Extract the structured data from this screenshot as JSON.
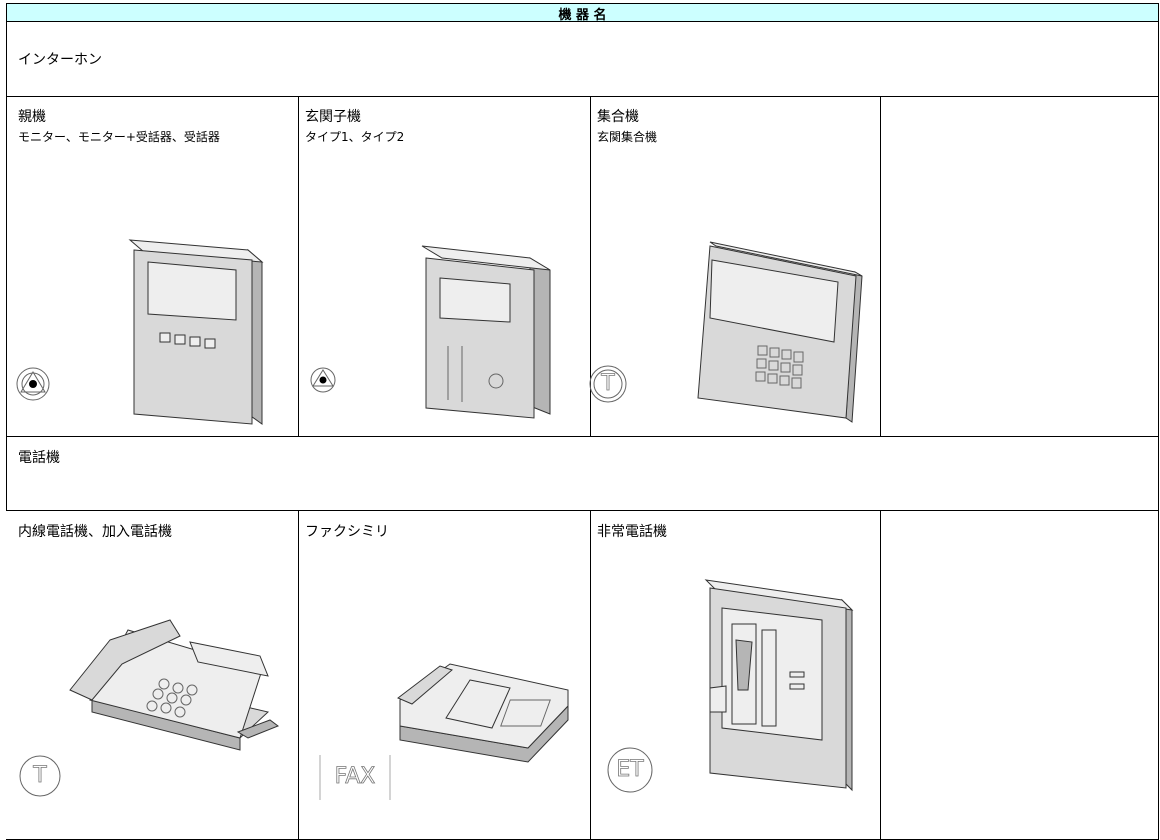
{
  "header": {
    "title": "機 器 名"
  },
  "sections": [
    {
      "title": "インターホン",
      "cells": [
        {
          "title": "親機",
          "subtitle": "モニター、モニター+受話器、受話器"
        },
        {
          "title": "玄関子機",
          "subtitle": "タイプ1、タイプ2"
        },
        {
          "title": "集合機",
          "subtitle": "玄関集合機",
          "symbol": "T"
        }
      ]
    },
    {
      "title": "電話機",
      "cells": [
        {
          "title": "内線電話機、加入電話機",
          "symbol": "T"
        },
        {
          "title": "ファクシミリ",
          "symbol": "FAX"
        },
        {
          "title": "非常電話機",
          "symbol": "ET"
        }
      ]
    }
  ]
}
